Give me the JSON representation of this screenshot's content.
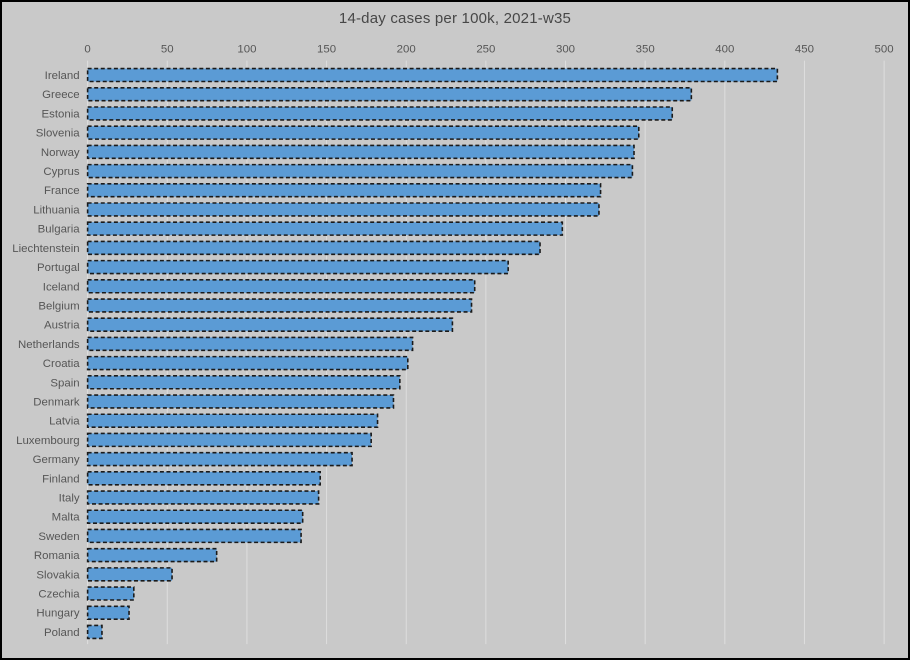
{
  "chart_title": "14-day cases per 100k, 2021-w35",
  "colors": {
    "background": "#c9c9c9",
    "frame_border": "#000000",
    "bar_fill": "#5b9bd5",
    "bar_border": "#1a1a1a",
    "gridline": "#dedede",
    "label_text": "#565656",
    "title_text": "#474747"
  },
  "chart_data": {
    "type": "bar",
    "orientation": "horizontal",
    "title": "14-day cases per 100k, 2021-w35",
    "xlabel": "",
    "ylabel": "",
    "xlim": [
      0,
      500
    ],
    "xticks": [
      0,
      50,
      100,
      150,
      200,
      250,
      300,
      350,
      400,
      450,
      500
    ],
    "grid": true,
    "axis_position": "top",
    "sort": "descending",
    "categories": [
      "Ireland",
      "Greece",
      "Estonia",
      "Slovenia",
      "Norway",
      "Cyprus",
      "France",
      "Lithuania",
      "Bulgaria",
      "Liechtenstein",
      "Portugal",
      "Iceland",
      "Belgium",
      "Austria",
      "Netherlands",
      "Croatia",
      "Spain",
      "Denmark",
      "Latvia",
      "Luxembourg",
      "Germany",
      "Finland",
      "Italy",
      "Malta",
      "Sweden",
      "Romania",
      "Slovakia",
      "Czechia",
      "Hungary",
      "Poland"
    ],
    "values": [
      433,
      379,
      367,
      346,
      343,
      342,
      322,
      321,
      298,
      284,
      264,
      243,
      241,
      229,
      204,
      201,
      196,
      192,
      182,
      178,
      166,
      146,
      145,
      135,
      134,
      81,
      53,
      29,
      26,
      9
    ]
  }
}
